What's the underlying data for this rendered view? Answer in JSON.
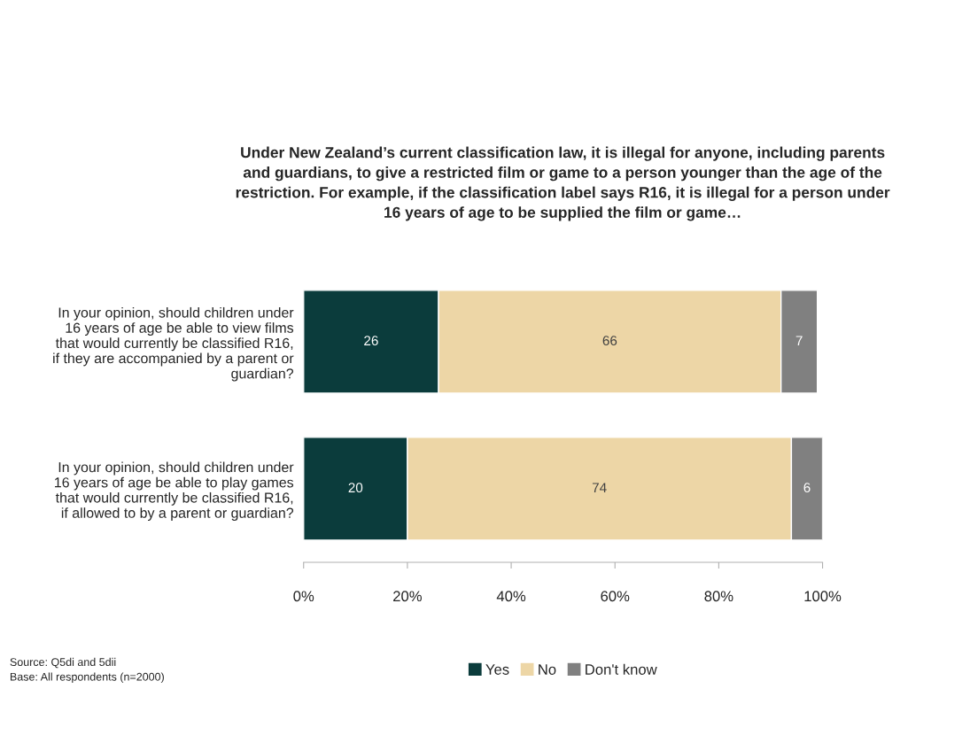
{
  "chart_data": {
    "type": "bar",
    "orientation": "horizontal",
    "stacked": true,
    "title": "Under New Zealand’s current classification law, it is illegal for anyone, including parents\nand guardians, to give a restricted film or game to a person younger than the age of the\nrestriction. For example, if the classification label says R16, it is illegal for a person under\n16 years of age to be supplied the film or game…",
    "categories": [
      "In your opinion, should children under\n16 years of age be able to view films\nthat would currently be classified R16,\nif they are accompanied by a parent or\nguardian?",
      "In your opinion, should children under\n16 years of age be able to play games\nthat would currently be classified R16,\nif allowed to by a parent or guardian?"
    ],
    "series": [
      {
        "name": "Yes",
        "color": "#0b3c3c",
        "values": [
          26,
          20
        ]
      },
      {
        "name": "No",
        "color": "#edd6a6",
        "values": [
          66,
          74
        ]
      },
      {
        "name": "Don't know",
        "color": "#808080",
        "values": [
          7,
          6
        ]
      }
    ],
    "xlim": [
      0,
      100
    ],
    "xticks": [
      {
        "value": 0,
        "label": "0%"
      },
      {
        "value": 20,
        "label": "20%"
      },
      {
        "value": 40,
        "label": "40%"
      },
      {
        "value": 60,
        "label": "60%"
      },
      {
        "value": 80,
        "label": "80%"
      },
      {
        "value": 100,
        "label": "100%"
      }
    ],
    "data_labels": true,
    "legend": "bottom",
    "grid": false,
    "annotations": [
      "Source: Q5di and 5dii",
      "Base: All respondents (n=2000)"
    ]
  }
}
